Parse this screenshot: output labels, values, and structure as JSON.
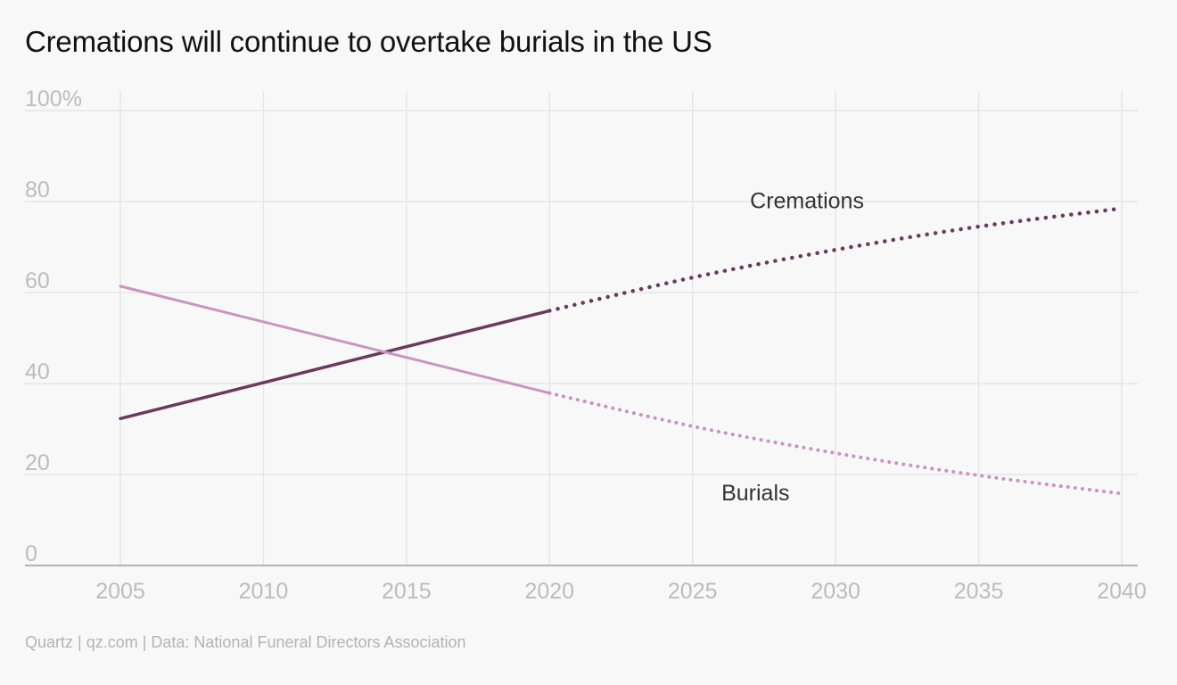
{
  "chart_data": {
    "type": "line",
    "title": "Cremations will continue to overtake burials in the US",
    "footer": "Quartz | qz.com | Data: National Funeral Directors Association",
    "xlabel": "",
    "ylabel": "",
    "xlim": [
      2003,
      2040.5
    ],
    "ylim": [
      0,
      100
    ],
    "x_ticks": [
      2005,
      2010,
      2015,
      2020,
      2025,
      2030,
      2035,
      2040
    ],
    "y_ticks": [
      0,
      20,
      40,
      60,
      80,
      100
    ],
    "y_tick_labels": [
      "0",
      "20",
      "40",
      "60",
      "80",
      "100%"
    ],
    "grid": true,
    "projection_start": 2020,
    "series": [
      {
        "name": "Cremations",
        "color": "#6b3a5e",
        "style": "solid to 2020, dotted projection after",
        "points": [
          {
            "x": 2005,
            "y": 32.3
          },
          {
            "x": 2020,
            "y": 56.0
          },
          {
            "x": 2025,
            "y": 63.3
          },
          {
            "x": 2030,
            "y": 69.4
          },
          {
            "x": 2035,
            "y": 74.5
          },
          {
            "x": 2040,
            "y": 78.5
          }
        ]
      },
      {
        "name": "Burials",
        "color": "#cc92c2",
        "style": "solid to 2020, dotted projection after",
        "points": [
          {
            "x": 2005,
            "y": 61.4
          },
          {
            "x": 2020,
            "y": 37.9
          },
          {
            "x": 2025,
            "y": 30.6
          },
          {
            "x": 2030,
            "y": 24.7
          },
          {
            "x": 2035,
            "y": 19.8
          },
          {
            "x": 2040,
            "y": 15.8
          }
        ]
      }
    ]
  }
}
